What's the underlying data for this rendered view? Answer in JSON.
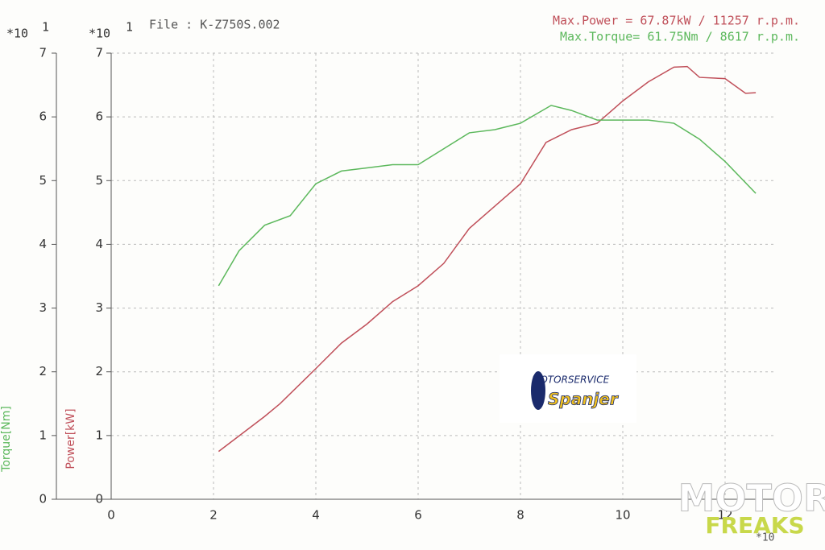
{
  "chart_data": {
    "type": "line",
    "file_label": "File : K-Z750S.002",
    "max_power": "Max.Power = 67.87kW / 11257 r.p.m.",
    "max_torque": "Max.Torque= 61.75Nm / 8617 r.p.m.",
    "y_multiplier": "*10",
    "y_exponent": "1",
    "x_multiplier": "*10",
    "y_label": "Power[kW]",
    "y2_label": "Torque[Nm]",
    "logo": {
      "top": "MOTORSERVICE",
      "bottom": "Spanjer"
    },
    "watermark": {
      "top": "MOTOR",
      "bottom": "FREAKS"
    },
    "xlim": [
      0,
      13
    ],
    "xticks": [
      0,
      2,
      4,
      6,
      8,
      10,
      12
    ],
    "ylim": [
      0,
      7
    ],
    "yticks": [
      0,
      1,
      2,
      3,
      4,
      5,
      6,
      7
    ],
    "y2lim": [
      0,
      7
    ],
    "y2ticks": [
      0,
      1,
      2,
      3,
      4,
      5,
      6,
      7
    ],
    "grid": true,
    "series": [
      {
        "name": "Power",
        "color": "#c0505a",
        "x": [
          2.1,
          3,
          3.3,
          4,
          4.5,
          5,
          5.5,
          6,
          6.5,
          7,
          7.5,
          8,
          8.5,
          9,
          9.5,
          10,
          10.5,
          11,
          11.26,
          11.5,
          12,
          12.4,
          12.6
        ],
        "values": [
          0.75,
          1.3,
          1.5,
          2.05,
          2.45,
          2.75,
          3.1,
          3.35,
          3.7,
          4.25,
          4.6,
          4.95,
          5.6,
          5.8,
          5.9,
          6.25,
          6.55,
          6.78,
          6.79,
          6.62,
          6.6,
          6.37,
          6.38
        ]
      },
      {
        "name": "Torque",
        "color": "#5cb85c",
        "axis": "y2",
        "x": [
          2.1,
          2.5,
          3,
          3.5,
          4,
          4.5,
          5,
          5.5,
          6,
          6.5,
          7,
          7.5,
          8,
          8.6,
          9,
          9.5,
          10,
          10.5,
          11,
          11.5,
          12,
          12.6
        ],
        "values": [
          3.35,
          3.9,
          4.3,
          4.45,
          4.95,
          5.15,
          5.2,
          5.25,
          5.25,
          5.5,
          5.75,
          5.8,
          5.9,
          6.18,
          6.1,
          5.95,
          5.95,
          5.95,
          5.9,
          5.65,
          5.3,
          4.8
        ]
      }
    ]
  }
}
